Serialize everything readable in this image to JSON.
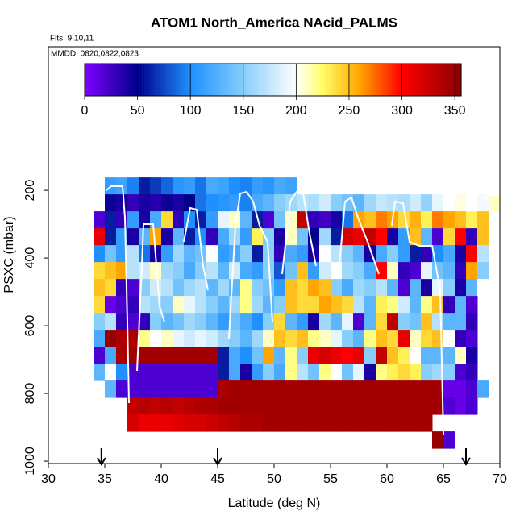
{
  "chart_data": {
    "type": "heatmap",
    "title": "ATOM1 North_America NAcid_PALMS",
    "subtitle": "Flts: 9,10,11",
    "annotation": "MMDD: 0820,0822,0823",
    "x_label": "Latitude (deg N)",
    "y_label": "PSXC (mbar)",
    "xlim": [
      30,
      70
    ],
    "xticks": [
      30,
      35,
      40,
      45,
      50,
      55,
      60,
      65,
      70
    ],
    "ylim": [
      1007,
      -224
    ],
    "yticks": [
      200,
      400,
      600,
      800,
      1000
    ],
    "xbins": [
      34,
      35,
      36,
      37,
      38,
      39,
      40,
      41,
      42,
      43,
      44,
      45,
      46,
      47,
      48,
      49,
      50,
      51,
      52,
      53,
      54,
      55,
      56,
      57,
      58,
      59,
      60,
      61,
      62,
      63,
      64,
      65,
      66,
      67,
      68,
      69,
      70
    ],
    "ybins": [
      162,
      212,
      262,
      312,
      362,
      412,
      462,
      512,
      562,
      612,
      662,
      712,
      762,
      812,
      862,
      912,
      962
    ],
    "values": [
      [
        null,
        110,
        115,
        95,
        60,
        70,
        85,
        105,
        110,
        90,
        120,
        115,
        100,
        95,
        110,
        105,
        120,
        115,
        null,
        null,
        null,
        null,
        null,
        null,
        null,
        null,
        null,
        null,
        null,
        null,
        null,
        null,
        null,
        null,
        null,
        null
      ],
      [
        null,
        45,
        40,
        30,
        40,
        35,
        45,
        40,
        50,
        90,
        100,
        105,
        110,
        95,
        120,
        130,
        150,
        160,
        170,
        165,
        180,
        150,
        140,
        130,
        160,
        175,
        170,
        165,
        180,
        155,
        190,
        200,
        205,
        200,
        195,
        210
      ],
      [
        20,
        60,
        30,
        110,
        40,
        120,
        240,
        30,
        100,
        60,
        110,
        190,
        210,
        130,
        60,
        20,
        140,
        210,
        330,
        30,
        25,
        40,
        90,
        260,
        250,
        270,
        260,
        240,
        255,
        230,
        270,
        260,
        250,
        230,
        250,
        null
      ],
      [
        310,
        60,
        110,
        40,
        130,
        260,
        40,
        130,
        60,
        100,
        30,
        120,
        160,
        110,
        230,
        150,
        40,
        210,
        140,
        50,
        160,
        60,
        320,
        310,
        330,
        300,
        40,
        110,
        250,
        130,
        20,
        240,
        300,
        30,
        250,
        null
      ],
      [
        100,
        140,
        110,
        170,
        90,
        40,
        110,
        160,
        130,
        140,
        200,
        110,
        120,
        150,
        60,
        150,
        30,
        120,
        110,
        40,
        200,
        170,
        150,
        130,
        40,
        120,
        150,
        110,
        60,
        30,
        100,
        120,
        40,
        300,
        170,
        null
      ],
      [
        240,
        250,
        260,
        170,
        180,
        210,
        160,
        150,
        120,
        150,
        170,
        130,
        180,
        120,
        110,
        150,
        80,
        140,
        250,
        110,
        180,
        200,
        160,
        150,
        120,
        300,
        210,
        30,
        20,
        190,
        140,
        130,
        30,
        260,
        150,
        null
      ],
      [
        250,
        240,
        30,
        20,
        150,
        180,
        170,
        140,
        160,
        170,
        130,
        160,
        130,
        220,
        150,
        140,
        110,
        250,
        240,
        260,
        250,
        150,
        120,
        160,
        150,
        170,
        130,
        20,
        130,
        40,
        190,
        150,
        40,
        130,
        200,
        null
      ],
      [
        240,
        10,
        20,
        30,
        170,
        160,
        150,
        210,
        190,
        170,
        150,
        130,
        160,
        220,
        160,
        130,
        150,
        250,
        240,
        240,
        260,
        250,
        240,
        170,
        130,
        230,
        220,
        180,
        130,
        220,
        250,
        30,
        130,
        20,
        null,
        null
      ],
      [
        150,
        170,
        30,
        20,
        30,
        150,
        130,
        140,
        160,
        150,
        130,
        110,
        140,
        120,
        100,
        150,
        240,
        130,
        110,
        40,
        160,
        130,
        190,
        20,
        130,
        240,
        330,
        150,
        140,
        250,
        170,
        130,
        130,
        30,
        null,
        null
      ],
      [
        120,
        350,
        340,
        340,
        220,
        200,
        210,
        190,
        180,
        190,
        180,
        160,
        150,
        130,
        160,
        210,
        250,
        240,
        250,
        220,
        210,
        190,
        150,
        130,
        220,
        250,
        240,
        310,
        210,
        240,
        250,
        200,
        30,
        20,
        null,
        null
      ],
      [
        20,
        120,
        340,
        345,
        345,
        345,
        345,
        345,
        345,
        345,
        345,
        60,
        120,
        100,
        140,
        260,
        130,
        220,
        150,
        310,
        320,
        310,
        300,
        310,
        150,
        330,
        250,
        230,
        200,
        130,
        130,
        130,
        210,
        40,
        null,
        null
      ],
      [
        130,
        200,
        100,
        20,
        20,
        20,
        20,
        20,
        20,
        20,
        20,
        60,
        120,
        40,
        110,
        150,
        120,
        220,
        170,
        140,
        220,
        200,
        140,
        190,
        40,
        220,
        230,
        240,
        230,
        150,
        160,
        150,
        20,
        30,
        null,
        null
      ],
      [
        null,
        130,
        20,
        20,
        20,
        20,
        20,
        20,
        20,
        20,
        20,
        340,
        345,
        345,
        345,
        345,
        345,
        345,
        345,
        345,
        345,
        345,
        345,
        345,
        345,
        345,
        345,
        345,
        345,
        345,
        345,
        10,
        10,
        20,
        120,
        null
      ],
      [
        null,
        null,
        null,
        330,
        335,
        330,
        335,
        330,
        335,
        340,
        340,
        345,
        345,
        345,
        345,
        345,
        345,
        345,
        345,
        345,
        345,
        345,
        345,
        345,
        345,
        345,
        345,
        345,
        345,
        345,
        345,
        20,
        10,
        20,
        null,
        null
      ],
      [
        null,
        null,
        null,
        320,
        310,
        310,
        310,
        315,
        320,
        320,
        325,
        330,
        335,
        340,
        340,
        345,
        345,
        345,
        345,
        345,
        345,
        345,
        345,
        345,
        345,
        345,
        345,
        345,
        345,
        345,
        null,
        null,
        null,
        null,
        null,
        null
      ],
      [
        null,
        null,
        null,
        null,
        null,
        null,
        null,
        null,
        null,
        null,
        null,
        null,
        null,
        null,
        null,
        null,
        null,
        null,
        null,
        null,
        null,
        null,
        null,
        null,
        null,
        null,
        null,
        null,
        null,
        null,
        350,
        20,
        null,
        null,
        null,
        null
      ]
    ],
    "colormap": [
      [
        0,
        "#7f00ff"
      ],
      [
        50,
        "#00008b"
      ],
      [
        100,
        "#1e90ff"
      ],
      [
        150,
        "#87cefa"
      ],
      [
        200,
        "#ffffff"
      ],
      [
        225,
        "#ffff66"
      ],
      [
        260,
        "#ffa500"
      ],
      [
        300,
        "#ff0000"
      ],
      [
        356,
        "#8b0000"
      ]
    ],
    "clim": [
      0,
      356
    ],
    "cticks": [
      0,
      50,
      100,
      150,
      200,
      250,
      300,
      350
    ],
    "arrows": [
      34.7,
      45,
      67
    ]
  }
}
